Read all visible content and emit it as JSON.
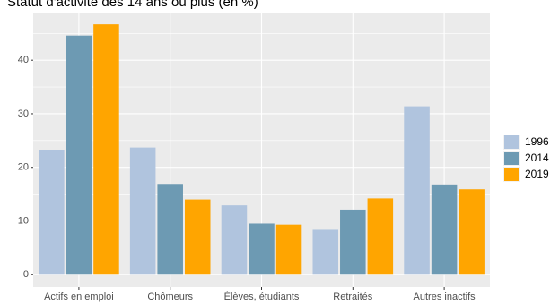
{
  "chart_data": {
    "type": "bar",
    "title": "Statut d'activité des 14 ans ou plus (en %)",
    "categories": [
      "Actifs en emploi",
      "Chômeurs",
      "Élèves, étudiants",
      "Retraités",
      "Autres inactifs"
    ],
    "series": [
      {
        "name": "1996",
        "color": "#b0c4de",
        "values": [
          23.3,
          23.7,
          12.9,
          8.5,
          31.4
        ]
      },
      {
        "name": "2014",
        "color": "#6d9ab3",
        "values": [
          44.6,
          16.9,
          9.5,
          12.1,
          16.8
        ]
      },
      {
        "name": "2019",
        "color": "#ffa500",
        "values": [
          46.7,
          14.0,
          9.3,
          14.2,
          15.9
        ]
      }
    ],
    "yticks": [
      0,
      10,
      20,
      30,
      40
    ],
    "ylim": [
      -2.3,
      48.9
    ],
    "grid": true,
    "legend_position": "right",
    "xlabel": "",
    "ylabel": ""
  }
}
